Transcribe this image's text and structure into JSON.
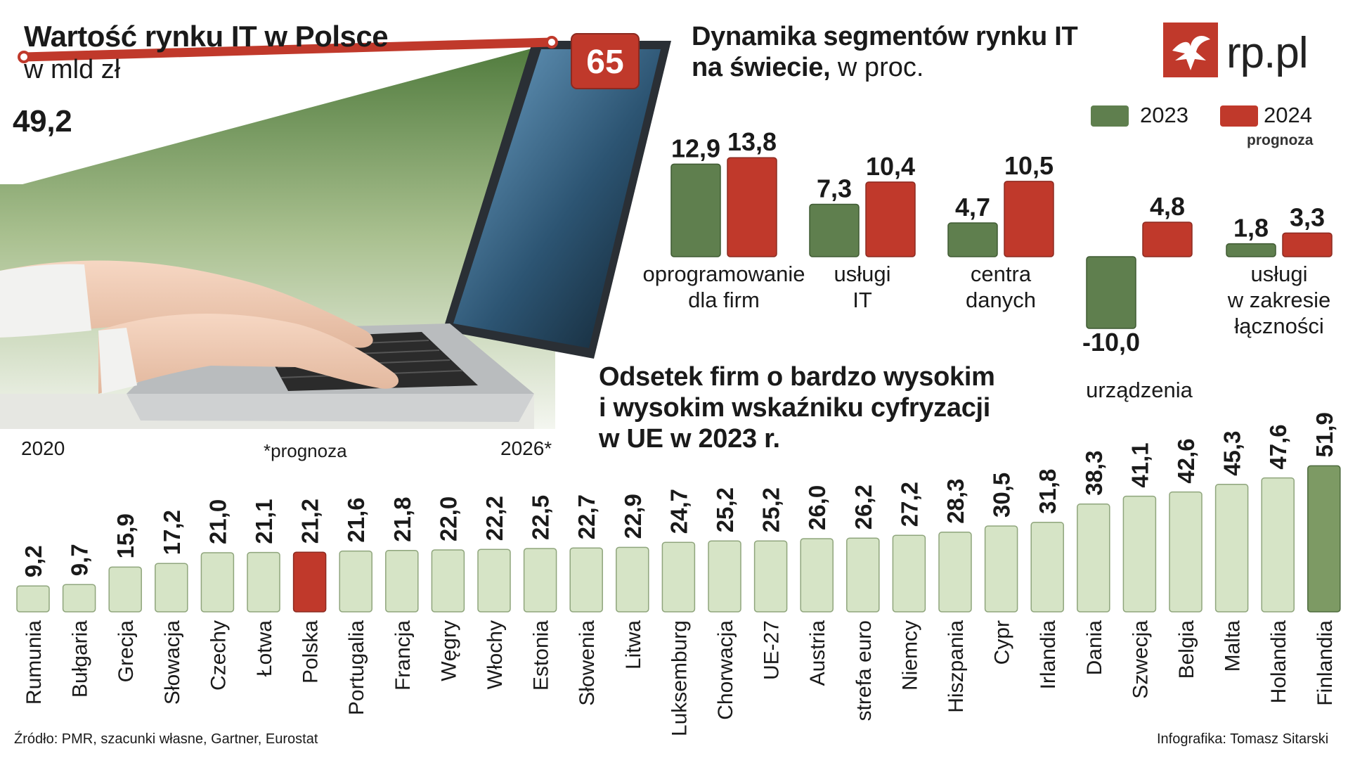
{
  "brand": {
    "logo_text": "rp.pl",
    "accent": "#c0392b",
    "green_dark": "#5f7f4e",
    "green_light": "#d6e4c6",
    "green_mid": "#7d9a64"
  },
  "market": {
    "title": "Wartość rynku IT w Polsce",
    "unit": "w mld zł",
    "start_value": "49,2",
    "end_value": "65",
    "start_year": "2020",
    "end_year": "2026*",
    "note": "*prognoza"
  },
  "segments": {
    "title_bold": "Dynamika segmentów rynku IT",
    "title_bold2": "na świecie,",
    "title_rest": " w proc.",
    "legend_2023": "2023",
    "legend_2024": "2024",
    "legend_2024_note": "prognoza"
  },
  "digital": {
    "title_line1": "Odsetek firm o bardzo wysokim",
    "title_line2": "i wysokim wskaźniku cyfryzacji",
    "title_line3": "w UE w 2023 r."
  },
  "footer": {
    "source": "Źródło: PMR, szacunki własne, Gartner, Eurostat",
    "credit": "Infografika: Tomasz Sitarski"
  },
  "chart_data": [
    {
      "type": "line",
      "title": "Wartość rynku IT w Polsce",
      "ylabel": "w mld zł",
      "x": [
        "2020",
        "2026*"
      ],
      "values": [
        49.2,
        65
      ],
      "value_labels": [
        "49,2",
        "65"
      ]
    },
    {
      "type": "bar",
      "title": "Dynamika segmentów rynku IT na świecie, w proc.",
      "categories": [
        "oprogramowanie\ndla firm",
        "usługi\nIT",
        "centra\ndanych",
        "urządzenia",
        "usługi\nw zakresie\nłączności"
      ],
      "series": [
        {
          "name": "2023",
          "color": "#5f7f4e",
          "values": [
            12.9,
            7.3,
            4.7,
            -10.0,
            1.8
          ],
          "labels": [
            "12,9",
            "7,3",
            "4,7",
            "-10,0",
            "1,8"
          ]
        },
        {
          "name": "2024",
          "color": "#c0392b",
          "values": [
            13.8,
            10.4,
            10.5,
            4.8,
            3.3
          ],
          "labels": [
            "13,8",
            "10,4",
            "10,5",
            "4,8",
            "3,3"
          ]
        }
      ]
    },
    {
      "type": "bar",
      "title": "Odsetek firm o bardzo wysokim i wysokim wskaźniku cyfryzacji w UE w 2023 r.",
      "categories": [
        "Rumunia",
        "Bułgaria",
        "Grecja",
        "Słowacja",
        "Czechy",
        "Łotwa",
        "Polska",
        "Portugalia",
        "Francja",
        "Węgry",
        "Włochy",
        "Estonia",
        "Słowenia",
        "Litwa",
        "Luksemburg",
        "Chorwacja",
        "UE-27",
        "Austria",
        "strefa euro",
        "Niemcy",
        "Hiszpania",
        "Cypr",
        "Irlandia",
        "Dania",
        "Szwecja",
        "Belgia",
        "Malta",
        "Holandia",
        "Finlandia"
      ],
      "values": [
        9.2,
        9.7,
        15.9,
        17.2,
        21.0,
        21.1,
        21.2,
        21.6,
        21.8,
        22.0,
        22.2,
        22.5,
        22.7,
        22.9,
        24.7,
        25.2,
        25.2,
        26.0,
        26.2,
        27.2,
        28.3,
        30.5,
        31.8,
        38.3,
        41.1,
        42.6,
        45.3,
        47.6,
        51.9
      ],
      "labels": [
        "9,2",
        "9,7",
        "15,9",
        "17,2",
        "21,0",
        "21,1",
        "21,2",
        "21,6",
        "21,8",
        "22,0",
        "22,2",
        "22,5",
        "22,7",
        "22,9",
        "24,7",
        "25,2",
        "25,2",
        "26,0",
        "26,2",
        "27,2",
        "28,3",
        "30,5",
        "31,8",
        "38,3",
        "41,1",
        "42,6",
        "45,3",
        "47,6",
        "51,9"
      ],
      "highlight": {
        "Polska": "#c0392b",
        "Finlandia": "#5f7f4e"
      }
    }
  ]
}
